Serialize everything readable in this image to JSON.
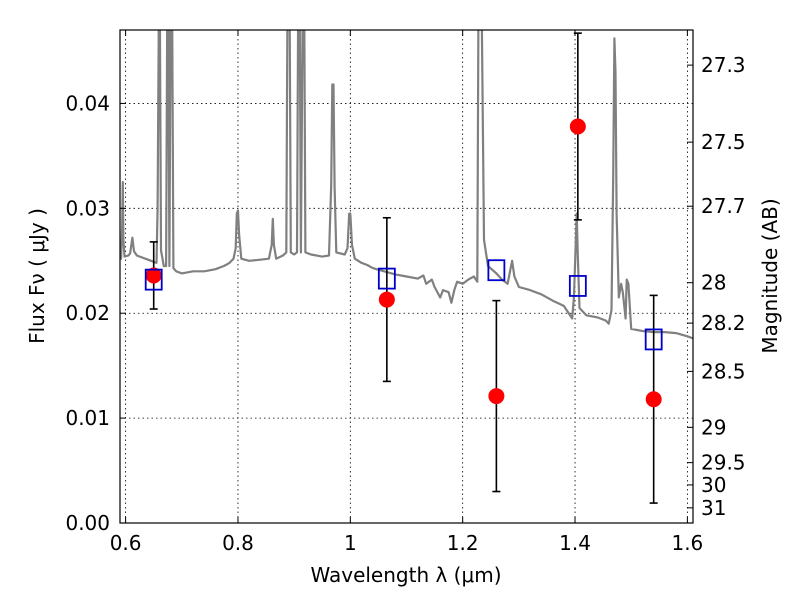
{
  "chart_data": {
    "type": "scatter",
    "xlabel": "Wavelength  λ (μm)",
    "ylabel": "Flux  Fν  ( μJy )",
    "ylabel_right": "Magnitude (AB)",
    "xlim": [
      0.59,
      1.61
    ],
    "ylim": [
      0.0,
      0.047
    ],
    "grid": true,
    "x_ticks": [
      0.6,
      0.8,
      1.0,
      1.2,
      1.4,
      1.6
    ],
    "x_tick_labels": [
      "0.6",
      "0.8",
      "1",
      "1.2",
      "1.4",
      "1.6"
    ],
    "y_ticks": [
      0.0,
      0.01,
      0.02,
      0.03,
      0.04
    ],
    "y_tick_labels": [
      "0.00",
      "0.01",
      "0.02",
      "0.03",
      "0.04"
    ],
    "right_ticks": [
      {
        "label": "27.3",
        "mag": 27.3
      },
      {
        "label": "27.5",
        "mag": 27.5
      },
      {
        "label": "27.7",
        "mag": 27.7
      },
      {
        "label": "28",
        "mag": 28.0
      },
      {
        "label": "28.2",
        "mag": 28.2
      },
      {
        "label": "28.5",
        "mag": 28.5
      },
      {
        "label": "29",
        "mag": 29.0
      },
      {
        "label": "29.5",
        "mag": 29.5
      },
      {
        "label": "30",
        "mag": 30.0
      },
      {
        "label": "31",
        "mag": 31.0
      }
    ],
    "series": [
      {
        "kind": "line",
        "color": "#808080",
        "points": [
          [
            0.59,
            0.0255
          ],
          [
            0.592,
            0.0252
          ],
          [
            0.594,
            0.0285
          ],
          [
            0.595,
            0.0325
          ],
          [
            0.596,
            0.027
          ],
          [
            0.598,
            0.0254
          ],
          [
            0.605,
            0.0255
          ],
          [
            0.608,
            0.0257
          ],
          [
            0.612,
            0.0272
          ],
          [
            0.615,
            0.0259
          ],
          [
            0.62,
            0.0255
          ],
          [
            0.63,
            0.0253
          ],
          [
            0.64,
            0.0251
          ],
          [
            0.65,
            0.0249
          ],
          [
            0.655,
            0.0248
          ],
          [
            0.657,
            0.03
          ],
          [
            0.659,
            0.048
          ],
          [
            0.661,
            0.048
          ],
          [
            0.663,
            0.026
          ],
          [
            0.668,
            0.0245
          ],
          [
            0.672,
            0.0245
          ],
          [
            0.674,
            0.048
          ],
          [
            0.676,
            0.048
          ],
          [
            0.678,
            0.0245
          ],
          [
            0.68,
            0.048
          ],
          [
            0.683,
            0.048
          ],
          [
            0.685,
            0.0243
          ],
          [
            0.69,
            0.024
          ],
          [
            0.7,
            0.0238
          ],
          [
            0.72,
            0.024
          ],
          [
            0.74,
            0.024
          ],
          [
            0.76,
            0.0242
          ],
          [
            0.775,
            0.0245
          ],
          [
            0.785,
            0.0248
          ],
          [
            0.792,
            0.0252
          ],
          [
            0.796,
            0.0262
          ],
          [
            0.798,
            0.0295
          ],
          [
            0.8,
            0.0298
          ],
          [
            0.802,
            0.0275
          ],
          [
            0.806,
            0.0252
          ],
          [
            0.82,
            0.025
          ],
          [
            0.84,
            0.0251
          ],
          [
            0.855,
            0.0252
          ],
          [
            0.86,
            0.0265
          ],
          [
            0.862,
            0.029
          ],
          [
            0.864,
            0.0265
          ],
          [
            0.868,
            0.0252
          ],
          [
            0.88,
            0.0255
          ],
          [
            0.886,
            0.0258
          ],
          [
            0.888,
            0.048
          ],
          [
            0.892,
            0.048
          ],
          [
            0.894,
            0.0258
          ],
          [
            0.9,
            0.0256
          ],
          [
            0.905,
            0.0258
          ],
          [
            0.907,
            0.048
          ],
          [
            0.91,
            0.048
          ],
          [
            0.912,
            0.0258
          ],
          [
            0.915,
            0.048
          ],
          [
            0.918,
            0.048
          ],
          [
            0.92,
            0.0258
          ],
          [
            0.93,
            0.0256
          ],
          [
            0.95,
            0.0254
          ],
          [
            0.962,
            0.0255
          ],
          [
            0.966,
            0.0322
          ],
          [
            0.968,
            0.0418
          ],
          [
            0.97,
            0.0418
          ],
          [
            0.972,
            0.032
          ],
          [
            0.975,
            0.0258
          ],
          [
            0.99,
            0.0256
          ],
          [
            0.995,
            0.0262
          ],
          [
            0.998,
            0.0295
          ],
          [
            1.0,
            0.0295
          ],
          [
            1.003,
            0.0265
          ],
          [
            1.008,
            0.0252
          ],
          [
            1.02,
            0.0248
          ],
          [
            1.03,
            0.0246
          ],
          [
            1.04,
            0.0243
          ],
          [
            1.06,
            0.024
          ],
          [
            1.08,
            0.0237
          ],
          [
            1.1,
            0.0235
          ],
          [
            1.12,
            0.0233
          ],
          [
            1.13,
            0.0236
          ],
          [
            1.135,
            0.0228
          ],
          [
            1.145,
            0.0232
          ],
          [
            1.15,
            0.0225
          ],
          [
            1.16,
            0.0215
          ],
          [
            1.165,
            0.0222
          ],
          [
            1.175,
            0.022
          ],
          [
            1.18,
            0.021
          ],
          [
            1.185,
            0.0222
          ],
          [
            1.19,
            0.023
          ],
          [
            1.2,
            0.0228
          ],
          [
            1.21,
            0.0232
          ],
          [
            1.22,
            0.0235
          ],
          [
            1.226,
            0.023
          ],
          [
            1.228,
            0.048
          ],
          [
            1.234,
            0.048
          ],
          [
            1.238,
            0.027
          ],
          [
            1.245,
            0.0245
          ],
          [
            1.26,
            0.0238
          ],
          [
            1.27,
            0.0232
          ],
          [
            1.28,
            0.0228
          ],
          [
            1.288,
            0.025
          ],
          [
            1.292,
            0.0235
          ],
          [
            1.3,
            0.0225
          ],
          [
            1.32,
            0.0222
          ],
          [
            1.34,
            0.0218
          ],
          [
            1.36,
            0.0212
          ],
          [
            1.38,
            0.0207
          ],
          [
            1.395,
            0.0195
          ],
          [
            1.398,
            0.0215
          ],
          [
            1.4,
            0.0245
          ],
          [
            1.403,
            0.0295
          ],
          [
            1.405,
            0.0255
          ],
          [
            1.408,
            0.0205
          ],
          [
            1.42,
            0.0198
          ],
          [
            1.44,
            0.0196
          ],
          [
            1.455,
            0.0193
          ],
          [
            1.46,
            0.019
          ],
          [
            1.465,
            0.0203
          ],
          [
            1.468,
            0.033
          ],
          [
            1.47,
            0.0462
          ],
          [
            1.472,
            0.043
          ],
          [
            1.474,
            0.0295
          ],
          [
            1.478,
            0.0215
          ],
          [
            1.482,
            0.0228
          ],
          [
            1.485,
            0.022
          ],
          [
            1.49,
            0.0195
          ],
          [
            1.492,
            0.0232
          ],
          [
            1.495,
            0.0228
          ],
          [
            1.5,
            0.0185
          ],
          [
            1.52,
            0.0183
          ],
          [
            1.54,
            0.0182
          ],
          [
            1.56,
            0.0182
          ],
          [
            1.58,
            0.0181
          ],
          [
            1.6,
            0.0178
          ],
          [
            1.61,
            0.0176
          ]
        ]
      },
      {
        "kind": "marker",
        "marker": "square",
        "color": "#0000cc",
        "points": [
          [
            0.65,
            0.0232
          ],
          [
            1.065,
            0.0233
          ],
          [
            1.26,
            0.0241
          ],
          [
            1.405,
            0.0226
          ],
          [
            1.54,
            0.0175
          ]
        ]
      },
      {
        "kind": "marker",
        "marker": "circle",
        "color": "#ff0000",
        "points": [
          {
            "x": 0.65,
            "y": 0.0236,
            "err": 0.0032
          },
          {
            "x": 1.065,
            "y": 0.0213,
            "err": 0.0078
          },
          {
            "x": 1.26,
            "y": 0.0121,
            "err": 0.0091
          },
          {
            "x": 1.405,
            "y": 0.0378,
            "err": 0.0089
          },
          {
            "x": 1.54,
            "y": 0.0118,
            "err": 0.0099
          }
        ]
      }
    ]
  }
}
